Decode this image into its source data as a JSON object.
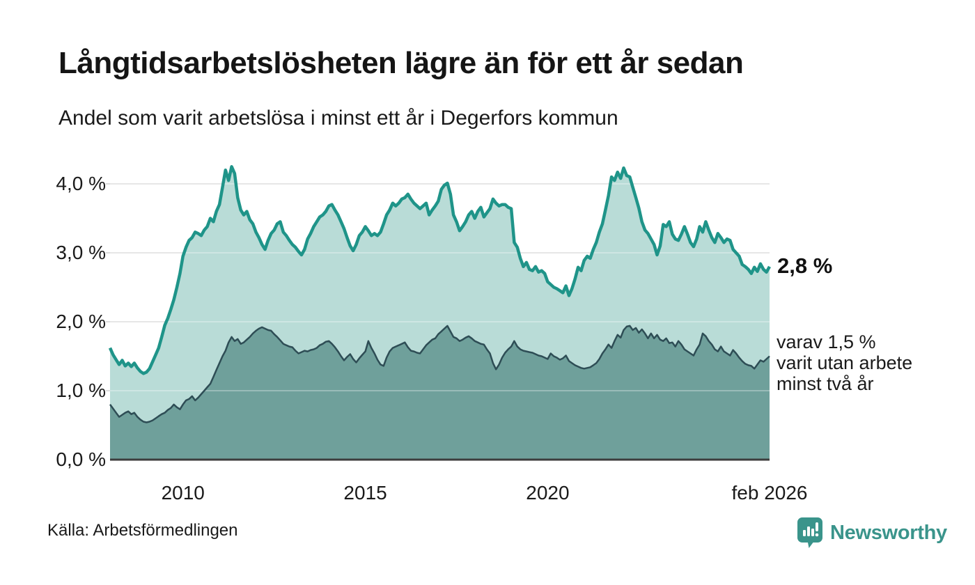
{
  "header": {
    "title": "Långtidsarbetslösheten lägre än för ett år sedan",
    "subtitle": "Andel som varit arbetslösa i minst ett år i Degerfors kommun"
  },
  "footer": {
    "source": "Källa: Arbetsförmedlingen",
    "brand_name": "Newsworthy",
    "brand_color": "#3a948b"
  },
  "annotations": {
    "end_label_top": "2,8 %",
    "end_label_bottom": "varav 1,5 %\nvarit utan arbete\nminst två år"
  },
  "chart_data": {
    "type": "area",
    "title": "Långtidsarbetslösheten lägre än för ett år sedan",
    "subtitle": "Andel som varit arbetslösa i minst ett år i Degerfors kommun",
    "x_unit": "monthly",
    "x_start": 2008.0,
    "x_end": 2026.0833,
    "ylim": [
      0,
      4.45
    ],
    "grid": "horizontal",
    "grid_color": "#dcdcdc",
    "axis_line_color": "#3d3d3d",
    "x_ticks": [
      {
        "t": 2010,
        "label": "2010"
      },
      {
        "t": 2015,
        "label": "2015"
      },
      {
        "t": 2020,
        "label": "2020"
      },
      {
        "t": 2026.0833,
        "label": "feb 2026"
      }
    ],
    "y_ticks": [
      {
        "v": 0.0,
        "label": "0,0 %"
      },
      {
        "v": 1.0,
        "label": "1,0 %"
      },
      {
        "v": 2.0,
        "label": "2,0 %"
      },
      {
        "v": 3.0,
        "label": "3,0 %"
      },
      {
        "v": 4.0,
        "label": "4,0 %"
      }
    ],
    "series": [
      {
        "name": "Andel som varit arbetslösa i minst ett år",
        "end_value": "2,8 %",
        "line_color": "#1f9489",
        "fill_color": "#b9dcd7",
        "line_width": 4.5,
        "values": [
          1.62,
          1.52,
          1.45,
          1.38,
          1.44,
          1.36,
          1.4,
          1.35,
          1.4,
          1.33,
          1.28,
          1.25,
          1.27,
          1.32,
          1.42,
          1.52,
          1.62,
          1.78,
          1.95,
          2.05,
          2.18,
          2.32,
          2.5,
          2.7,
          2.95,
          3.08,
          3.18,
          3.22,
          3.3,
          3.28,
          3.25,
          3.33,
          3.38,
          3.5,
          3.45,
          3.6,
          3.7,
          3.95,
          4.2,
          4.05,
          4.25,
          4.15,
          3.8,
          3.62,
          3.55,
          3.6,
          3.48,
          3.42,
          3.3,
          3.22,
          3.12,
          3.05,
          3.18,
          3.28,
          3.33,
          3.42,
          3.45,
          3.3,
          3.25,
          3.18,
          3.12,
          3.08,
          3.02,
          2.97,
          3.05,
          3.2,
          3.28,
          3.38,
          3.45,
          3.52,
          3.55,
          3.6,
          3.68,
          3.7,
          3.62,
          3.55,
          3.45,
          3.35,
          3.22,
          3.1,
          3.03,
          3.12,
          3.25,
          3.3,
          3.38,
          3.32,
          3.25,
          3.28,
          3.25,
          3.3,
          3.42,
          3.55,
          3.62,
          3.72,
          3.68,
          3.72,
          3.78,
          3.8,
          3.85,
          3.78,
          3.72,
          3.68,
          3.64,
          3.68,
          3.72,
          3.55,
          3.62,
          3.68,
          3.75,
          3.92,
          3.98,
          4.01,
          3.85,
          3.55,
          3.45,
          3.32,
          3.38,
          3.45,
          3.55,
          3.6,
          3.5,
          3.6,
          3.66,
          3.52,
          3.58,
          3.64,
          3.78,
          3.72,
          3.68,
          3.7,
          3.7,
          3.66,
          3.64,
          3.15,
          3.08,
          2.92,
          2.8,
          2.86,
          2.76,
          2.74,
          2.8,
          2.72,
          2.74,
          2.7,
          2.58,
          2.54,
          2.5,
          2.48,
          2.45,
          2.42,
          2.52,
          2.38,
          2.48,
          2.62,
          2.79,
          2.74,
          2.89,
          2.95,
          2.92,
          3.05,
          3.15,
          3.3,
          3.42,
          3.62,
          3.83,
          4.1,
          4.05,
          4.17,
          4.08,
          4.23,
          4.12,
          4.1,
          3.95,
          3.8,
          3.65,
          3.45,
          3.33,
          3.28,
          3.2,
          3.12,
          2.97,
          3.1,
          3.41,
          3.38,
          3.45,
          3.27,
          3.2,
          3.18,
          3.27,
          3.38,
          3.27,
          3.15,
          3.09,
          3.2,
          3.38,
          3.3,
          3.45,
          3.33,
          3.22,
          3.15,
          3.28,
          3.22,
          3.15,
          3.2,
          3.18,
          3.05,
          3.0,
          2.95,
          2.83,
          2.8,
          2.76,
          2.7,
          2.79,
          2.73,
          2.84,
          2.76,
          2.72,
          2.8
        ]
      },
      {
        "name": "varav utan arbete minst två år",
        "end_value": "1,5 %",
        "line_color": "#2e4d55",
        "fill_color": "#6fa09b",
        "line_width": 2.5,
        "values": [
          0.8,
          0.74,
          0.68,
          0.62,
          0.65,
          0.68,
          0.7,
          0.66,
          0.68,
          0.62,
          0.58,
          0.55,
          0.54,
          0.55,
          0.57,
          0.6,
          0.63,
          0.66,
          0.68,
          0.72,
          0.75,
          0.8,
          0.76,
          0.73,
          0.8,
          0.86,
          0.88,
          0.92,
          0.86,
          0.9,
          0.95,
          1.0,
          1.05,
          1.1,
          1.2,
          1.3,
          1.4,
          1.5,
          1.58,
          1.7,
          1.78,
          1.72,
          1.75,
          1.68,
          1.7,
          1.74,
          1.78,
          1.83,
          1.87,
          1.9,
          1.92,
          1.9,
          1.88,
          1.87,
          1.82,
          1.78,
          1.73,
          1.68,
          1.66,
          1.64,
          1.63,
          1.58,
          1.54,
          1.56,
          1.58,
          1.57,
          1.59,
          1.6,
          1.62,
          1.66,
          1.68,
          1.71,
          1.72,
          1.68,
          1.63,
          1.57,
          1.5,
          1.44,
          1.49,
          1.53,
          1.46,
          1.41,
          1.47,
          1.52,
          1.57,
          1.72,
          1.62,
          1.54,
          1.45,
          1.38,
          1.36,
          1.48,
          1.57,
          1.62,
          1.64,
          1.66,
          1.68,
          1.7,
          1.63,
          1.58,
          1.57,
          1.55,
          1.54,
          1.6,
          1.66,
          1.7,
          1.74,
          1.76,
          1.82,
          1.86,
          1.9,
          1.94,
          1.86,
          1.78,
          1.76,
          1.72,
          1.74,
          1.77,
          1.79,
          1.76,
          1.72,
          1.7,
          1.68,
          1.67,
          1.6,
          1.54,
          1.4,
          1.31,
          1.38,
          1.48,
          1.55,
          1.6,
          1.64,
          1.72,
          1.64,
          1.6,
          1.58,
          1.57,
          1.56,
          1.55,
          1.53,
          1.51,
          1.5,
          1.48,
          1.46,
          1.54,
          1.5,
          1.48,
          1.45,
          1.47,
          1.51,
          1.43,
          1.4,
          1.37,
          1.35,
          1.33,
          1.32,
          1.33,
          1.34,
          1.37,
          1.4,
          1.46,
          1.54,
          1.6,
          1.67,
          1.62,
          1.72,
          1.81,
          1.77,
          1.88,
          1.93,
          1.94,
          1.88,
          1.91,
          1.84,
          1.89,
          1.83,
          1.76,
          1.83,
          1.76,
          1.81,
          1.74,
          1.72,
          1.76,
          1.69,
          1.7,
          1.64,
          1.72,
          1.67,
          1.6,
          1.57,
          1.54,
          1.51,
          1.6,
          1.67,
          1.83,
          1.79,
          1.72,
          1.67,
          1.6,
          1.57,
          1.64,
          1.57,
          1.54,
          1.51,
          1.59,
          1.54,
          1.48,
          1.43,
          1.39,
          1.37,
          1.36,
          1.32,
          1.38,
          1.44,
          1.42,
          1.46,
          1.5
        ]
      }
    ]
  }
}
